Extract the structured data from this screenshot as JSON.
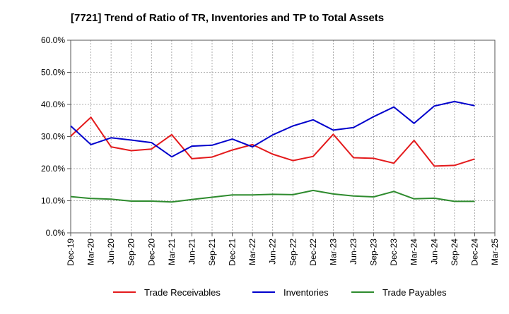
{
  "chart_data": {
    "type": "line",
    "title": "[7721]  Trend of Ratio of TR, Inventories and TP to Total Assets",
    "xlabel": "",
    "ylabel": "",
    "x_tick_labels": [
      "Dec-19",
      "Mar-20",
      "Jun-20",
      "Sep-20",
      "Dec-20",
      "Mar-21",
      "Jun-21",
      "Sep-21",
      "Dec-21",
      "Mar-22",
      "Jun-22",
      "Sep-22",
      "Dec-22",
      "Mar-23",
      "Jun-23",
      "Sep-23",
      "Dec-23",
      "Mar-24",
      "Jun-24",
      "Sep-24",
      "Dec-24",
      "Mar-25"
    ],
    "x": [
      "Dec-19",
      "Mar-20",
      "Jun-20",
      "Sep-20",
      "Dec-20",
      "Mar-21",
      "Jun-21",
      "Sep-21",
      "Dec-21",
      "Mar-22",
      "Jun-22",
      "Sep-22",
      "Dec-22",
      "Mar-23",
      "Jun-23",
      "Sep-23",
      "Dec-23",
      "Mar-24",
      "Jun-24",
      "Sep-24",
      "Dec-24"
    ],
    "y_ticks": [
      0,
      10,
      20,
      30,
      40,
      50,
      60
    ],
    "y_tick_labels": [
      "0.0%",
      "10.0%",
      "20.0%",
      "30.0%",
      "40.0%",
      "50.0%",
      "60.0%"
    ],
    "ylim": [
      0,
      60
    ],
    "grid": true,
    "legend_position": "bottom",
    "series": [
      {
        "name": "Trade Receivables",
        "color": "#e41a1c",
        "values": [
          30.1,
          36.0,
          26.8,
          25.6,
          26.1,
          30.6,
          23.1,
          23.6,
          25.8,
          27.5,
          24.5,
          22.5,
          23.8,
          30.7,
          23.4,
          23.2,
          21.7,
          28.8,
          20.8,
          21.0,
          23.0
        ]
      },
      {
        "name": "Inventories",
        "color": "#0000cc",
        "values": [
          33.3,
          27.5,
          29.6,
          28.9,
          28.1,
          23.7,
          27.0,
          27.3,
          29.2,
          26.8,
          30.5,
          33.3,
          35.2,
          32.0,
          32.8,
          36.2,
          39.2,
          34.1,
          39.5,
          40.9,
          39.6
        ]
      },
      {
        "name": "Trade Payables",
        "color": "#2e8b2e",
        "values": [
          11.3,
          10.7,
          10.5,
          9.9,
          9.9,
          9.6,
          10.4,
          11.1,
          11.8,
          11.8,
          12.0,
          11.9,
          13.2,
          12.1,
          11.5,
          11.2,
          12.9,
          10.6,
          10.8,
          9.8,
          9.8
        ]
      }
    ]
  }
}
